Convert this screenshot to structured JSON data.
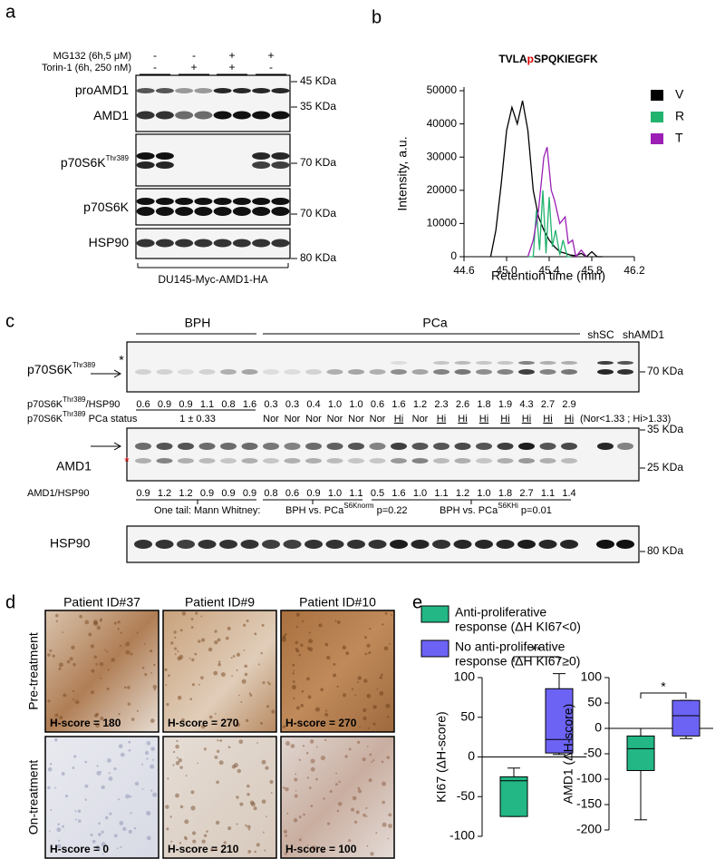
{
  "panel_a": {
    "label": "a",
    "treatments": [
      {
        "name": "MG132 (6h,5 μM)",
        "signs": [
          "-",
          "-",
          "+",
          "+"
        ]
      },
      {
        "name": "Torin-1 (6h, 250 nM)",
        "signs": [
          "-",
          "+",
          "+",
          "-"
        ]
      }
    ],
    "blots": [
      {
        "label": "proAMD1",
        "marker": "45 KDa"
      },
      {
        "label": "AMD1",
        "marker": "35 KDa"
      },
      {
        "label": "p70S6K",
        "sup": "Thr389",
        "marker": "70 KDa"
      },
      {
        "label": "p70S6K",
        "marker": "70 KDa"
      },
      {
        "label": "HSP90",
        "marker": "80 KDa"
      }
    ],
    "cell_line": "DU145-Myc-AMD1-HA"
  },
  "panel_b": {
    "label": "b"
  },
  "panel_c": {
    "label": "c",
    "groups": [
      "BPH",
      "PCa"
    ],
    "controls": [
      "shSC",
      "shAMD1"
    ],
    "blot1": {
      "label": "p70S6K",
      "sup": "Thr389",
      "star": "*",
      "marker": "70 KDa"
    },
    "ratio1": {
      "label": "p70S6K",
      "sup": "Thr389",
      "suffix": "/HSP90",
      "values": [
        "0.6",
        "0.9",
        "0.9",
        "1.1",
        "0.8",
        "1.6",
        "0.3",
        "0.3",
        "0.4",
        "1.0",
        "1.0",
        "0.6",
        "1.6",
        "1.2",
        "2.3",
        "2.6",
        "1.8",
        "1.9",
        "4.3",
        "2.7",
        "2.9"
      ]
    },
    "status": {
      "label": "p70S6K",
      "sup": "Thr389",
      "suffix": " PCa status",
      "bph": "1 ± 0.33",
      "values": [
        "Nor",
        "Nor",
        "Nor",
        "Nor",
        "Nor",
        "Nor",
        "Hi",
        "Nor",
        "Hi",
        "Hi",
        "Hi",
        "Hi",
        "Hi",
        "Hi",
        "Hi"
      ],
      "legend": "(Nor<1.33 ; Hi>1.33)"
    },
    "blot2": {
      "label": "AMD1",
      "star": "*",
      "markers": [
        "35 KDa",
        "25 KDa"
      ]
    },
    "ratio2": {
      "label": "AMD1/HSP90",
      "values": [
        "0.9",
        "1.2",
        "1.2",
        "0.9",
        "0.9",
        "0.9",
        "0.8",
        "0.6",
        "0.9",
        "1.0",
        "1.1",
        "0.5",
        "1.6",
        "1.0",
        "1.1",
        "1.2",
        "1.0",
        "1.8",
        "2.7",
        "1.1",
        "1.4"
      ]
    },
    "stats": {
      "test": "One tail: Mann Whitney:",
      "comparisons": [
        {
          "label": "BPH vs. PCa",
          "sup": "S6Knorm",
          "suffix": " p=0.22"
        },
        {
          "label": "BPH vs. PCa",
          "sup": "S6KHi",
          "suffix": " p=0.01"
        }
      ]
    },
    "blot3": {
      "label": "HSP90",
      "marker": "80 KDa"
    }
  },
  "panel_d": {
    "label": "d",
    "patients": [
      "Patient ID#37",
      "Patient ID#9",
      "Patient ID#10"
    ],
    "rows": [
      {
        "label": "Pre-treatment",
        "scores": [
          "H-score = 180",
          "H-score = 270",
          "H-score = 270"
        ]
      },
      {
        "label": "On-treatment",
        "scores": [
          "H-score = 0",
          "H-score = 210",
          "H-score = 100"
        ]
      }
    ]
  },
  "panel_e": {
    "label": "e",
    "legend": [
      {
        "lines": [
          "Anti-proliferative",
          "response (ΔH KI67<0)"
        ],
        "color": "#22b784"
      },
      {
        "lines": [
          "No anti-proliferative",
          "response  (ΔH KI67≥0)"
        ],
        "color": "#6c63f5"
      }
    ]
  },
  "chart_data": [
    {
      "type": "line",
      "title": {
        "prefix": "TVLA",
        "phospho": "p",
        "suffix": "SPQKIEGFK"
      },
      "xlabel": "Retention time (min)",
      "ylabel": "Intensity, a.u.",
      "xlim": [
        44.6,
        46.2
      ],
      "xticks": [
        44.6,
        {
          "value": 45,
          "label": "45.0"
        },
        45.4,
        45.8,
        46.2
      ],
      "ylim": [
        0,
        50000
      ],
      "yticks": [
        0,
        10000,
        20000,
        30000,
        40000,
        50000
      ],
      "series": [
        {
          "name": "V",
          "color": "#000000",
          "x": [
            44.85,
            44.9,
            44.95,
            45.0,
            45.05,
            45.1,
            45.15,
            45.2,
            45.25,
            45.3,
            45.35,
            45.4,
            45.45,
            45.5,
            45.55,
            45.6,
            45.65,
            45.7,
            45.75,
            45.8,
            45.85,
            45.9
          ],
          "values": [
            0,
            8000,
            22000,
            38000,
            45000,
            40000,
            47000,
            38000,
            20000,
            12000,
            8000,
            5000,
            3000,
            1500,
            1000,
            500,
            300,
            1000,
            0,
            1500,
            0,
            0
          ]
        },
        {
          "name": "R",
          "color": "#22b36e",
          "x": [
            45.2,
            45.25,
            45.28,
            45.31,
            45.34,
            45.37,
            45.4,
            45.43,
            45.46,
            45.5,
            45.53,
            45.57,
            45.6
          ],
          "values": [
            0,
            0,
            14000,
            2000,
            20000,
            1000,
            18000,
            3000,
            8000,
            500,
            5000,
            0,
            0
          ]
        },
        {
          "name": "T",
          "color": "#9b1fb5",
          "x": [
            45.2,
            45.25,
            45.3,
            45.35,
            45.38,
            45.42,
            45.45,
            45.5,
            45.55,
            45.58,
            45.62,
            45.65,
            45.7,
            45.75
          ],
          "values": [
            0,
            5000,
            14000,
            30000,
            33000,
            20000,
            17000,
            10000,
            12000,
            4000,
            5000,
            0,
            2000,
            0
          ]
        }
      ]
    },
    {
      "type": "box",
      "ylabel": "KI67 (ΔH-score)",
      "ylim": [
        -100,
        100
      ],
      "yticks": [
        -100,
        -50,
        0,
        50,
        100
      ],
      "significance": "**",
      "boxes": [
        {
          "color": "#22b784",
          "min": -75,
          "q1": -75,
          "median": -30,
          "q3": -25,
          "max": -14
        },
        {
          "color": "#6c63f5",
          "min": 3,
          "q1": 5,
          "median": 22,
          "q3": 86,
          "max": 105
        }
      ]
    },
    {
      "type": "box",
      "ylabel": "AMD1 (ΔH-score)",
      "ylim": [
        -200,
        100
      ],
      "yticks": [
        -200,
        -150,
        -100,
        -50,
        0,
        50,
        100
      ],
      "significance": "*",
      "boxes": [
        {
          "color": "#22b784",
          "min": -180,
          "q1": -83,
          "median": -40,
          "q3": -15,
          "max": 0
        },
        {
          "color": "#6c63f5",
          "min": -20,
          "q1": -15,
          "median": 25,
          "q3": 55,
          "max": 55
        }
      ]
    }
  ]
}
